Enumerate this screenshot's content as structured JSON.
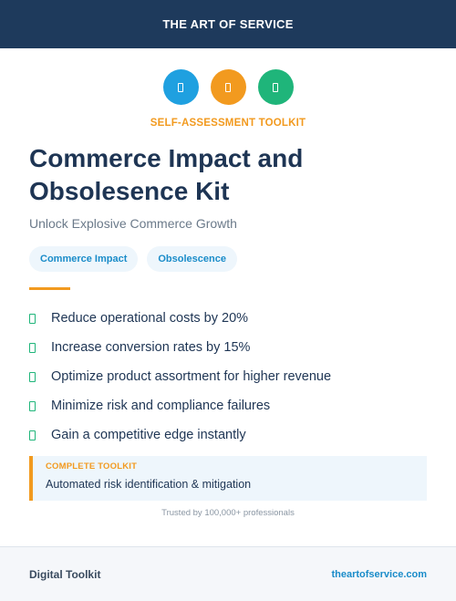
{
  "header": {
    "title": "THE ART OF SERVICE"
  },
  "icons": [
    {
      "name": "document-icon",
      "color": "#1fa0e0"
    },
    {
      "name": "document-icon",
      "color": "#f29a1f"
    },
    {
      "name": "document-icon",
      "color": "#1fb57a"
    }
  ],
  "kicker": "SELF-ASSESSMENT TOOLKIT",
  "title": "Commerce Impact and Obsolesence Kit",
  "subtitle": "Unlock Explosive Commerce Growth",
  "tags": [
    "Commerce Impact",
    "Obsolescence"
  ],
  "benefits": [
    "Reduce operational costs by 20%",
    "Increase conversion rates by 15%",
    "Optimize product assortment for higher revenue",
    "Minimize risk and compliance failures",
    "Gain a competitive edge instantly"
  ],
  "toolkit": {
    "label": "COMPLETE TOOLKIT",
    "text": "Automated risk identification & mitigation"
  },
  "trusted": "Trusted by 100,000+ professionals",
  "footer": {
    "left": "Digital Toolkit",
    "right": "theartofservice.com"
  },
  "colors": {
    "navy": "#1e3a5c",
    "orange": "#f29a1f",
    "blue": "#1fa0e0",
    "green": "#1fb57a"
  }
}
